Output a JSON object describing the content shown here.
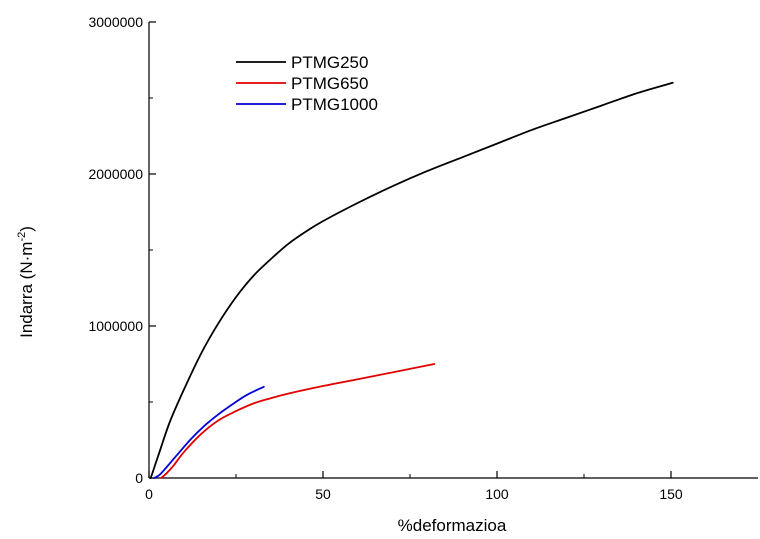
{
  "chart_data": {
    "type": "line",
    "title": "",
    "xlabel": "%deformazioa",
    "ylabel_main": "Indarra (N·m",
    "ylabel_sup": "-2",
    "ylabel_close": ")",
    "xlim": [
      0,
      175
    ],
    "ylim": [
      0,
      3000000
    ],
    "x_ticks": [
      0,
      50,
      100,
      150
    ],
    "x_tick_labels": [
      "0",
      "50",
      "100",
      "150"
    ],
    "y_ticks": [
      0,
      1000000,
      2000000,
      3000000
    ],
    "y_tick_labels": [
      "0",
      "1000000",
      "2000000",
      "3000000"
    ],
    "grid": false,
    "legend_position": "top-left",
    "series": [
      {
        "name": "PTMG250",
        "color": "#000000",
        "x": [
          0.5,
          3,
          6,
          10,
          15,
          20,
          25,
          30,
          35,
          40,
          45,
          50,
          60,
          70,
          80,
          90,
          100,
          110,
          120,
          130,
          140,
          150.5
        ],
        "y": [
          0,
          170000,
          370000,
          580000,
          820000,
          1020000,
          1190000,
          1330000,
          1440000,
          1540000,
          1620000,
          1690000,
          1810000,
          1920000,
          2020000,
          2110000,
          2200000,
          2290000,
          2370000,
          2450000,
          2530000,
          2600000
        ]
      },
      {
        "name": "PTMG650",
        "color": "#e00000",
        "x": [
          3.5,
          5,
          7,
          10,
          15,
          20,
          25,
          30,
          35,
          40,
          50,
          60,
          70,
          82
        ],
        "y": [
          0,
          30000,
          80000,
          170000,
          290000,
          380000,
          440000,
          490000,
          525000,
          555000,
          605000,
          650000,
          695000,
          750000
        ]
      },
      {
        "name": "PTMG1000",
        "color": "#0000dd",
        "x": [
          1.5,
          3,
          5,
          8,
          12,
          16,
          20,
          24,
          28,
          33
        ],
        "y": [
          0,
          20000,
          70000,
          150000,
          255000,
          345000,
          420000,
          485000,
          545000,
          600000
        ]
      }
    ]
  }
}
